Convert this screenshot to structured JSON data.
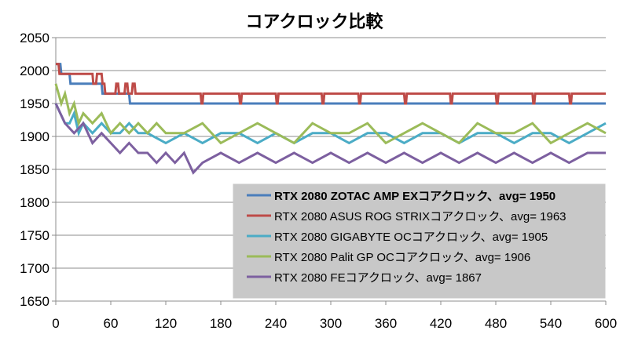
{
  "chart_data": {
    "type": "line",
    "title": "コアクロック比較",
    "xlabel": "",
    "ylabel": "",
    "xlim": [
      0,
      600
    ],
    "ylim": [
      1650,
      2050
    ],
    "xticks": [
      0,
      60,
      120,
      180,
      240,
      300,
      360,
      420,
      480,
      540,
      600
    ],
    "yticks": [
      1650,
      1700,
      1750,
      1800,
      1850,
      1900,
      1950,
      2000,
      2050
    ],
    "grid": "horizontal",
    "legend_position": "bottom-right",
    "series": [
      {
        "name": "RTX 2080 ZOTAC AMP EXコアクロック、avg= 1950",
        "color": "#4a7ebb",
        "bold": true,
        "x": [
          0,
          5,
          6,
          15,
          16,
          50,
          51,
          80,
          81,
          600
        ],
        "y": [
          2010,
          2010,
          1995,
          1995,
          1980,
          1980,
          1965,
          1965,
          1950,
          1950
        ]
      },
      {
        "name": "RTX 2080 ASUS ROG STRIXコアクロック、avg= 1963",
        "color": "#be4b48",
        "bold": false,
        "x": [
          0,
          3,
          4,
          40,
          41,
          44,
          45,
          50,
          51,
          53,
          54,
          65,
          66,
          68,
          69,
          75,
          76,
          78,
          79,
          83,
          84,
          86,
          87,
          100,
          101,
          103,
          104,
          150,
          158,
          159,
          160,
          161,
          200,
          201,
          202,
          203,
          240,
          241,
          242,
          243,
          290,
          291,
          292,
          293,
          330,
          331,
          332,
          333,
          380,
          381,
          382,
          383,
          430,
          431,
          432,
          433,
          480,
          481,
          482,
          483,
          520,
          521,
          522,
          523,
          560,
          561,
          562,
          563,
          600
        ],
        "y": [
          2010,
          2010,
          1995,
          1995,
          1980,
          1980,
          1995,
          1995,
          1980,
          1980,
          1965,
          1965,
          1980,
          1980,
          1965,
          1965,
          1980,
          1980,
          1965,
          1965,
          1980,
          1980,
          1965,
          1965,
          1965,
          1965,
          1965,
          1965,
          1965,
          1950,
          1950,
          1965,
          1965,
          1950,
          1950,
          1965,
          1965,
          1950,
          1950,
          1965,
          1965,
          1950,
          1950,
          1965,
          1965,
          1950,
          1950,
          1965,
          1965,
          1950,
          1950,
          1965,
          1965,
          1950,
          1950,
          1965,
          1965,
          1950,
          1950,
          1965,
          1965,
          1950,
          1950,
          1965,
          1965,
          1950,
          1950,
          1965,
          1965
        ]
      },
      {
        "name": "RTX 2080 GIGABYTE OCコアクロック、avg= 1905",
        "color": "#4bacc6",
        "bold": false,
        "x": [
          0,
          5,
          10,
          15,
          20,
          25,
          30,
          40,
          50,
          60,
          70,
          80,
          90,
          100,
          120,
          140,
          160,
          180,
          200,
          220,
          240,
          260,
          280,
          300,
          320,
          340,
          360,
          380,
          400,
          420,
          440,
          460,
          480,
          500,
          520,
          540,
          560,
          580,
          600
        ],
        "y": [
          1950,
          1935,
          1920,
          1920,
          1935,
          1905,
          1920,
          1905,
          1920,
          1905,
          1905,
          1920,
          1905,
          1905,
          1890,
          1905,
          1890,
          1905,
          1905,
          1890,
          1905,
          1890,
          1905,
          1905,
          1890,
          1905,
          1905,
          1890,
          1905,
          1905,
          1890,
          1905,
          1905,
          1890,
          1905,
          1905,
          1890,
          1905,
          1920
        ]
      },
      {
        "name": "RTX 2080 Palit GP OCコアクロック、avg= 1906",
        "color": "#9bbb59",
        "bold": false,
        "x": [
          0,
          3,
          6,
          10,
          15,
          20,
          25,
          30,
          40,
          50,
          60,
          70,
          80,
          90,
          100,
          110,
          120,
          140,
          160,
          180,
          200,
          220,
          240,
          260,
          280,
          300,
          320,
          340,
          360,
          380,
          400,
          420,
          440,
          460,
          480,
          500,
          520,
          540,
          560,
          580,
          600
        ],
        "y": [
          1980,
          1965,
          1950,
          1965,
          1935,
          1950,
          1920,
          1935,
          1920,
          1935,
          1905,
          1920,
          1905,
          1920,
          1905,
          1920,
          1905,
          1905,
          1920,
          1890,
          1905,
          1920,
          1905,
          1890,
          1920,
          1905,
          1905,
          1920,
          1890,
          1905,
          1920,
          1905,
          1890,
          1920,
          1905,
          1905,
          1920,
          1890,
          1905,
          1920,
          1905
        ]
      },
      {
        "name": "RTX 2080 FEコアクロック、avg= 1867",
        "color": "#7d60a0",
        "bold": false,
        "x": [
          0,
          5,
          10,
          20,
          30,
          40,
          50,
          60,
          70,
          80,
          90,
          100,
          110,
          120,
          130,
          140,
          150,
          160,
          180,
          200,
          220,
          240,
          260,
          280,
          300,
          320,
          340,
          360,
          380,
          400,
          420,
          440,
          460,
          480,
          500,
          520,
          540,
          560,
          580,
          600
        ],
        "y": [
          1950,
          1935,
          1920,
          1905,
          1920,
          1890,
          1905,
          1890,
          1875,
          1890,
          1875,
          1875,
          1860,
          1875,
          1860,
          1875,
          1845,
          1860,
          1875,
          1860,
          1875,
          1860,
          1875,
          1860,
          1875,
          1860,
          1875,
          1860,
          1875,
          1860,
          1875,
          1860,
          1875,
          1860,
          1875,
          1860,
          1875,
          1860,
          1875,
          1875
        ]
      }
    ]
  }
}
